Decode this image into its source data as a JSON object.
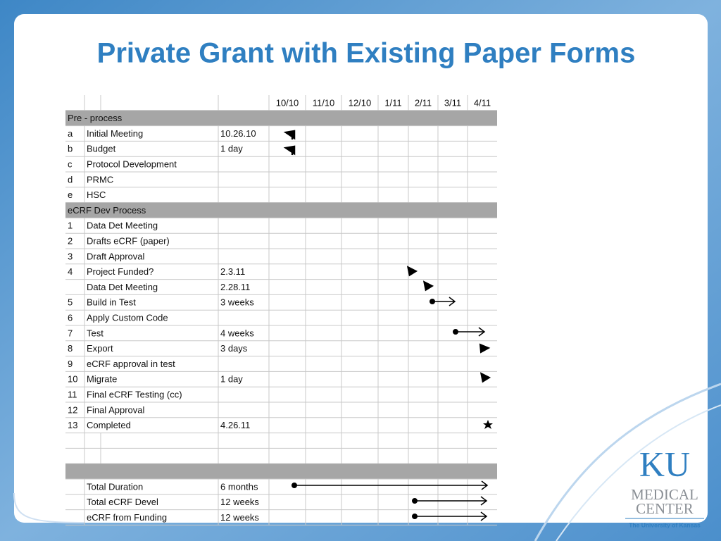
{
  "title": "Private Grant with Existing Paper Forms",
  "table": {
    "months": [
      "10/10",
      "11/10",
      "12/10",
      "1/11",
      "2/11",
      "3/11",
      "4/11"
    ],
    "sections": [
      {
        "title": "Pre - process",
        "rows": [
          {
            "id": "a",
            "task": "Initial Meeting",
            "duration": "10.26.10"
          },
          {
            "id": "b",
            "task": "Budget",
            "duration": "1 day"
          },
          {
            "id": "c",
            "task": "Protocol Development"
          },
          {
            "id": "d",
            "task": "PRMC"
          },
          {
            "id": "e",
            "task": "HSC"
          }
        ]
      },
      {
        "title": "eCRF Dev Process",
        "rows": [
          {
            "id": "1",
            "task": "Data Det Meeting"
          },
          {
            "id": "2",
            "task": "Drafts eCRF (paper)"
          },
          {
            "id": "3",
            "task": "Draft Approval"
          },
          {
            "id": "4",
            "task": "Project Funded?",
            "duration": "2.3.11"
          },
          {
            "task": "Data Det Meeting",
            "duration": "2.28.11"
          },
          {
            "id": "5",
            "task": "Build in Test",
            "duration": "3 weeks"
          },
          {
            "id": "6",
            "task": "Apply Custom Code"
          },
          {
            "id": "7",
            "task": "Test",
            "duration": "4 weeks"
          },
          {
            "id": "8",
            "task": "Export",
            "duration": "3 days"
          },
          {
            "id": "9",
            "task": "eCRF approval in test"
          },
          {
            "id": "10",
            "task": "Migrate",
            "duration": "1 day"
          },
          {
            "id": "11",
            "task": "Final eCRF Testing (cc)"
          },
          {
            "id": "12",
            "task": "Final Approval"
          },
          {
            "id": "13",
            "task": "Completed",
            "duration": "4.26.11"
          }
        ]
      }
    ],
    "summary_rows": [
      {
        "task": "Total Duration",
        "duration": "6 months"
      },
      {
        "task": "Total eCRF Devel",
        "duration": "12 weeks"
      },
      {
        "task": "eCRF from Funding",
        "duration": "12 weeks"
      }
    ]
  },
  "logo": {
    "mark": "KU",
    "line1": "MEDICAL",
    "line2": "CENTER",
    "tagline": "The University of Kansas"
  }
}
